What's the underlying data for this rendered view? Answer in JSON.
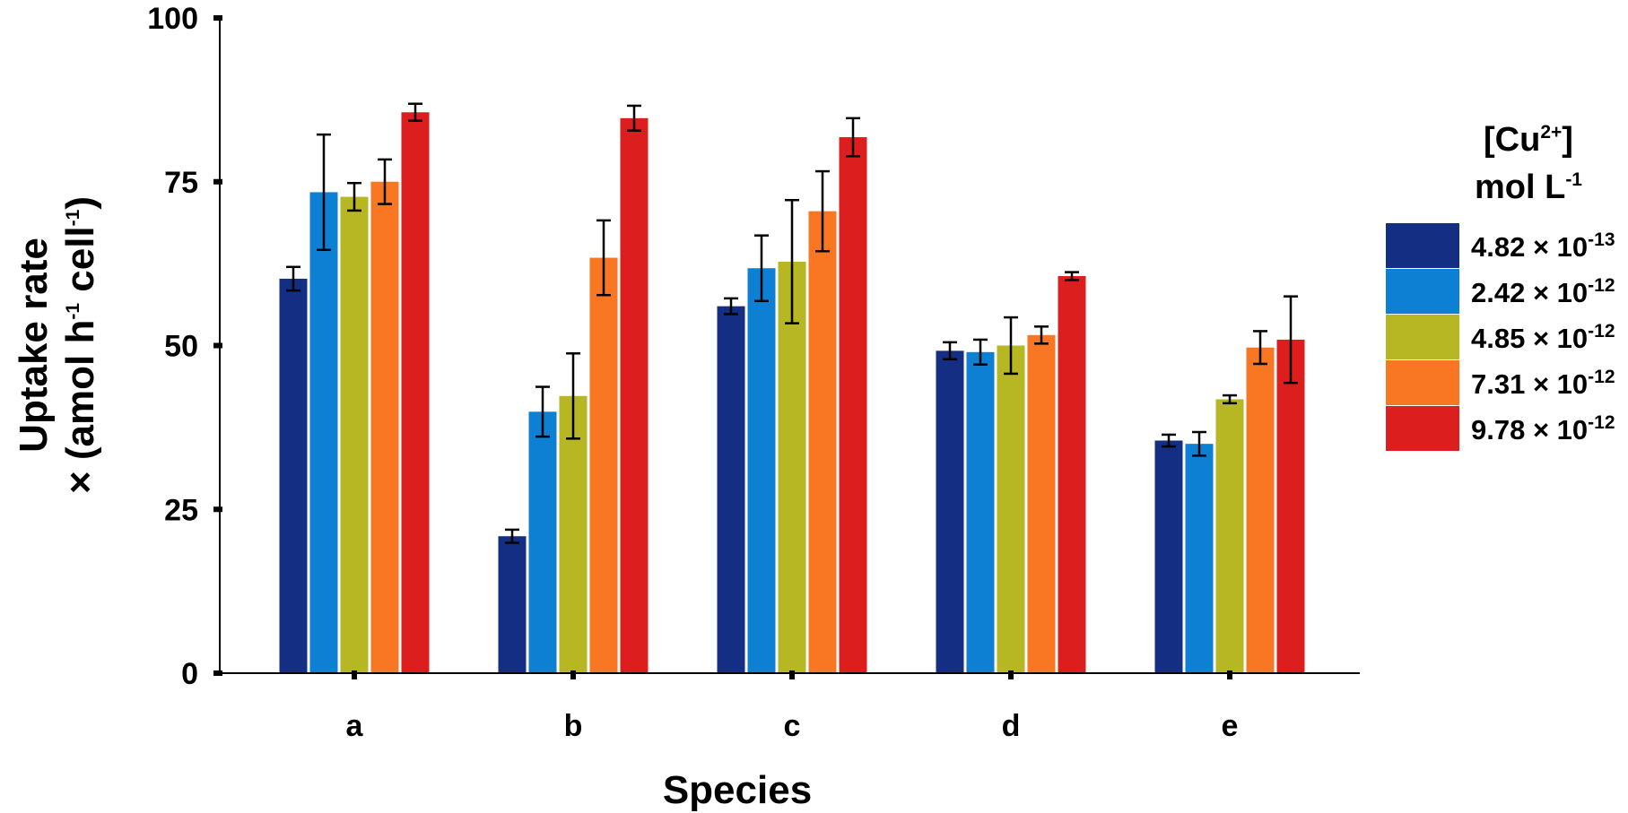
{
  "chart_data": {
    "type": "bar",
    "title": "",
    "xlabel": "Species",
    "ylabel": {
      "line1": "Uptake rate",
      "line2_prefix": "× (amol h",
      "line2_sup1": "-1",
      "line2_mid": " cell",
      "line2_sup2": "-1",
      "line2_suffix": ")"
    },
    "ylim": [
      0,
      100
    ],
    "yticks": [
      "0",
      "25",
      "50",
      "75",
      "100"
    ],
    "categories": [
      "a",
      "b",
      "c",
      "d",
      "e"
    ],
    "legend": {
      "title_line1_prefix": "[Cu",
      "title_line1_sup": "2+",
      "title_line1_suffix": "]",
      "title_line2_prefix": "mol L",
      "title_line2_sup": "-1",
      "position": "right"
    },
    "series": [
      {
        "name": "4.82 × 10-13",
        "label_base": "4.82 × 10",
        "label_exp": "-13",
        "color": "#142e83",
        "values": [
          60.2,
          20.9,
          56.0,
          49.2,
          35.5
        ],
        "errors": [
          1.8,
          1.0,
          1.2,
          1.3,
          0.9
        ]
      },
      {
        "name": "2.42 × 10-12",
        "label_base": "2.42 × 10",
        "label_exp": "-12",
        "color": "#0d80d4",
        "values": [
          73.4,
          39.9,
          61.8,
          49.0,
          35.0
        ],
        "errors": [
          8.8,
          3.8,
          5.0,
          1.9,
          1.8
        ]
      },
      {
        "name": "4.85 × 10-12",
        "label_base": "4.85 × 10",
        "label_exp": "-12",
        "color": "#b7b623",
        "values": [
          72.7,
          42.3,
          62.8,
          50.0,
          41.8
        ],
        "errors": [
          2.1,
          6.5,
          9.4,
          4.3,
          0.6
        ]
      },
      {
        "name": "7.31 × 10-12",
        "label_base": "7.31 × 10",
        "label_exp": "-12",
        "color": "#f97623",
        "values": [
          75.0,
          63.4,
          70.5,
          51.6,
          49.7
        ],
        "errors": [
          3.4,
          5.7,
          6.1,
          1.3,
          2.5
        ]
      },
      {
        "name": "9.78 × 10-12",
        "label_base": "9.78 × 10",
        "label_exp": "-12",
        "color": "#dc1f1e",
        "values": [
          85.6,
          84.7,
          81.8,
          60.6,
          50.9
        ],
        "errors": [
          1.3,
          1.9,
          2.9,
          0.6,
          6.6
        ]
      }
    ]
  }
}
